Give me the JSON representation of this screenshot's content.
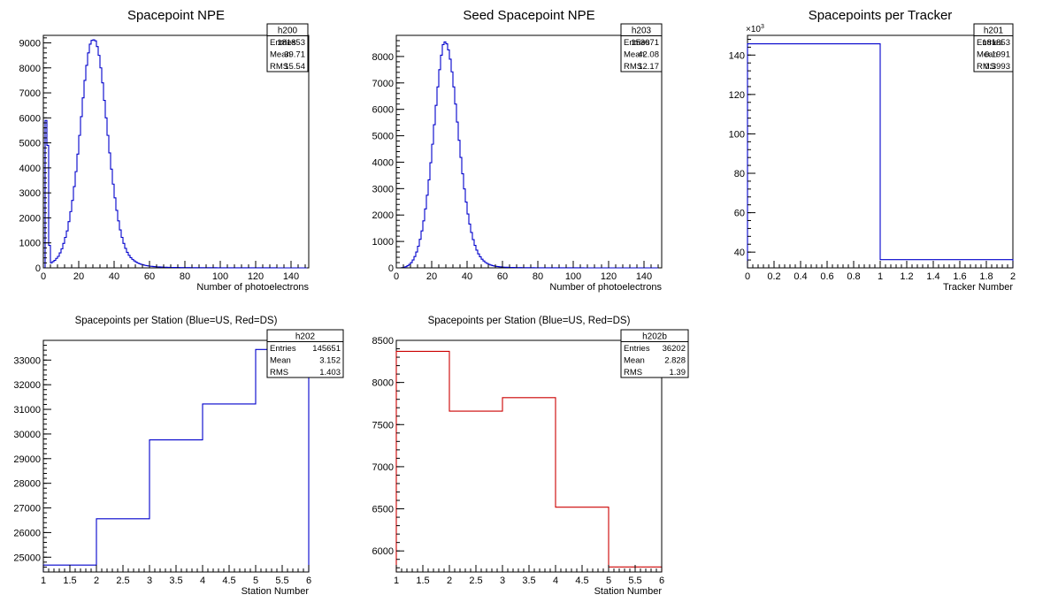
{
  "chart_data": [
    {
      "type": "histogram",
      "title": "Spacepoint NPE",
      "xlabel": "Number of photoelectrons",
      "ylabel": "",
      "line_color": "#0000cc",
      "xlim": [
        0,
        150
      ],
      "ylim": [
        0,
        9300
      ],
      "x_ticks": [
        0,
        20,
        40,
        60,
        80,
        100,
        120,
        140
      ],
      "y_ticks": [
        0,
        1000,
        2000,
        3000,
        4000,
        5000,
        6000,
        7000,
        8000,
        9000
      ],
      "bin_width": 1,
      "values": [
        0,
        5900,
        4900,
        900,
        200,
        250,
        300,
        380,
        460,
        600,
        760,
        980,
        1220,
        1480,
        1850,
        2250,
        2700,
        3250,
        3850,
        4550,
        5300,
        6050,
        6800,
        7500,
        8100,
        8600,
        8950,
        9100,
        9120,
        9080,
        8850,
        8500,
        8000,
        7400,
        6700,
        6000,
        5300,
        4600,
        3950,
        3350,
        2800,
        2300,
        1880,
        1520,
        1220,
        980,
        780,
        620,
        500,
        410,
        340,
        280,
        235,
        195,
        165,
        140,
        120,
        102,
        88,
        76,
        66,
        58,
        51,
        45,
        40,
        36,
        32,
        29,
        26,
        24,
        22,
        20,
        18,
        17,
        16,
        15,
        14,
        13,
        12,
        11,
        11,
        10,
        10,
        9,
        9,
        8,
        8,
        8,
        7,
        7,
        7,
        6,
        6,
        6,
        5,
        5,
        5,
        5,
        4,
        4,
        4,
        4,
        3,
        3,
        3,
        3,
        3,
        3,
        2,
        2,
        2,
        2,
        2,
        2,
        2,
        2,
        1,
        1,
        1,
        1,
        1,
        1,
        1,
        1,
        1,
        1,
        1,
        1,
        1,
        1,
        1,
        1,
        0,
        0,
        0,
        0,
        0,
        0,
        0,
        0,
        0,
        0,
        0,
        0,
        0,
        0,
        0,
        0,
        0
      ],
      "stats": {
        "name": "h200",
        "rows": [
          {
            "label": "Entries",
            "value": "181853"
          },
          {
            "label": "Mean",
            "value": "39.71"
          },
          {
            "label": "RMS",
            "value": "15.54"
          }
        ]
      }
    },
    {
      "type": "histogram",
      "title": "Seed Spacepoint NPE",
      "xlabel": "Number of photoelectrons",
      "ylabel": "",
      "line_color": "#0000cc",
      "xlim": [
        0,
        150
      ],
      "ylim": [
        0,
        8800
      ],
      "x_ticks": [
        0,
        20,
        40,
        60,
        80,
        100,
        120,
        140
      ],
      "y_ticks": [
        0,
        1000,
        2000,
        3000,
        4000,
        5000,
        6000,
        7000,
        8000
      ],
      "bin_width": 1,
      "values": [
        0,
        0,
        0,
        10,
        25,
        45,
        80,
        130,
        200,
        300,
        430,
        600,
        820,
        1080,
        1400,
        1780,
        2230,
        2750,
        3330,
        3980,
        4680,
        5420,
        6150,
        6850,
        7500,
        8050,
        8450,
        8550,
        8480,
        8250,
        7900,
        7420,
        6850,
        6200,
        5520,
        4830,
        4180,
        3560,
        2990,
        2490,
        2040,
        1660,
        1340,
        1070,
        850,
        670,
        530,
        420,
        330,
        260,
        205,
        165,
        132,
        106,
        86,
        70,
        58,
        48,
        40,
        34,
        29,
        25,
        22,
        19,
        17,
        15,
        13,
        12,
        11,
        10,
        9,
        8,
        7,
        7,
        6,
        6,
        5,
        5,
        4,
        4,
        4,
        3,
        3,
        3,
        3,
        2,
        2,
        2,
        2,
        2,
        2,
        1,
        1,
        1,
        1,
        1,
        1,
        1,
        1,
        1,
        1,
        1,
        1,
        1,
        1,
        1,
        0,
        0,
        0,
        0,
        0,
        0,
        0,
        0,
        0,
        0,
        0,
        0,
        0,
        0,
        0,
        0,
        0,
        0,
        0,
        0,
        0,
        0,
        0,
        0,
        0,
        0,
        0,
        0,
        0,
        0,
        0,
        0,
        0,
        0,
        0,
        0,
        0,
        0,
        0,
        0,
        0,
        0
      ],
      "stats": {
        "name": "h203",
        "rows": [
          {
            "label": "Entries",
            "value": "153071"
          },
          {
            "label": "Mean",
            "value": "42.08"
          },
          {
            "label": "RMS",
            "value": "12.17"
          }
        ]
      }
    },
    {
      "type": "histogram",
      "title": "Spacepoints per Tracker",
      "xlabel": "Tracker Number",
      "ylabel": "",
      "exponent_label": "×10",
      "exponent_power": "3",
      "line_color": "#0000cc",
      "xlim": [
        0,
        2
      ],
      "ylim": [
        32,
        150
      ],
      "x_ticks": [
        0,
        0.2,
        0.4,
        0.6,
        0.8,
        1,
        1.2,
        1.4,
        1.6,
        1.8,
        2
      ],
      "x_tick_labels": [
        "0",
        "0.2",
        "0.4",
        "0.6",
        "0.8",
        "1",
        "1.2",
        "1.4",
        "1.6",
        "1.8",
        "2"
      ],
      "y_ticks": [
        40,
        60,
        80,
        100,
        120,
        140
      ],
      "bin_edges": [
        0,
        1,
        2
      ],
      "values": [
        145.7,
        36.2
      ],
      "stats": {
        "name": "h201",
        "rows": [
          {
            "label": "Entries",
            "value": "181853"
          },
          {
            "label": "Mean",
            "value": "0.1991"
          },
          {
            "label": "RMS",
            "value": "0.3993"
          }
        ]
      }
    },
    {
      "type": "histogram",
      "title": "Spacepoints per Station (Blue=US, Red=DS)",
      "xlabel": "Station Number",
      "ylabel": "",
      "line_color": "#0000cc",
      "xlim": [
        1,
        6
      ],
      "ylim": [
        24400,
        33800
      ],
      "x_ticks": [
        1,
        1.5,
        2,
        2.5,
        3,
        3.5,
        4,
        4.5,
        5,
        5.5,
        6
      ],
      "x_tick_labels": [
        "1",
        "1.5",
        "2",
        "2.5",
        "3",
        "3.5",
        "4",
        "4.5",
        "5",
        "5.5",
        "6"
      ],
      "y_ticks": [
        25000,
        26000,
        27000,
        28000,
        29000,
        30000,
        31000,
        32000,
        33000
      ],
      "bin_edges": [
        1,
        2,
        3,
        4,
        5,
        6
      ],
      "values": [
        24680,
        26560,
        29760,
        31220,
        33430
      ],
      "stats": {
        "name": "h202",
        "rows": [
          {
            "label": "Entries",
            "value": "145651"
          },
          {
            "label": "Mean",
            "value": "3.152"
          },
          {
            "label": "RMS",
            "value": "1.403"
          }
        ]
      }
    },
    {
      "type": "histogram",
      "title": "Spacepoints per Station (Blue=US, Red=DS)",
      "xlabel": "Station Number",
      "ylabel": "",
      "line_color": "#cc0000",
      "xlim": [
        1,
        6
      ],
      "ylim": [
        5750,
        8500
      ],
      "x_ticks": [
        1,
        1.5,
        2,
        2.5,
        3,
        3.5,
        4,
        4.5,
        5,
        5.5,
        6
      ],
      "x_tick_labels": [
        "1",
        "1.5",
        "2",
        "2.5",
        "3",
        "3.5",
        "4",
        "4.5",
        "5",
        "5.5",
        "6"
      ],
      "y_ticks": [
        6000,
        6500,
        7000,
        7500,
        8000,
        8500
      ],
      "bin_edges": [
        1,
        2,
        3,
        4,
        5,
        6
      ],
      "values": [
        8370,
        7660,
        7820,
        6520,
        5810
      ],
      "stats": {
        "name": "h202b",
        "rows": [
          {
            "label": "Entries",
            "value": "36202"
          },
          {
            "label": "Mean",
            "value": "2.828"
          },
          {
            "label": "RMS",
            "value": "1.39"
          }
        ]
      }
    }
  ]
}
